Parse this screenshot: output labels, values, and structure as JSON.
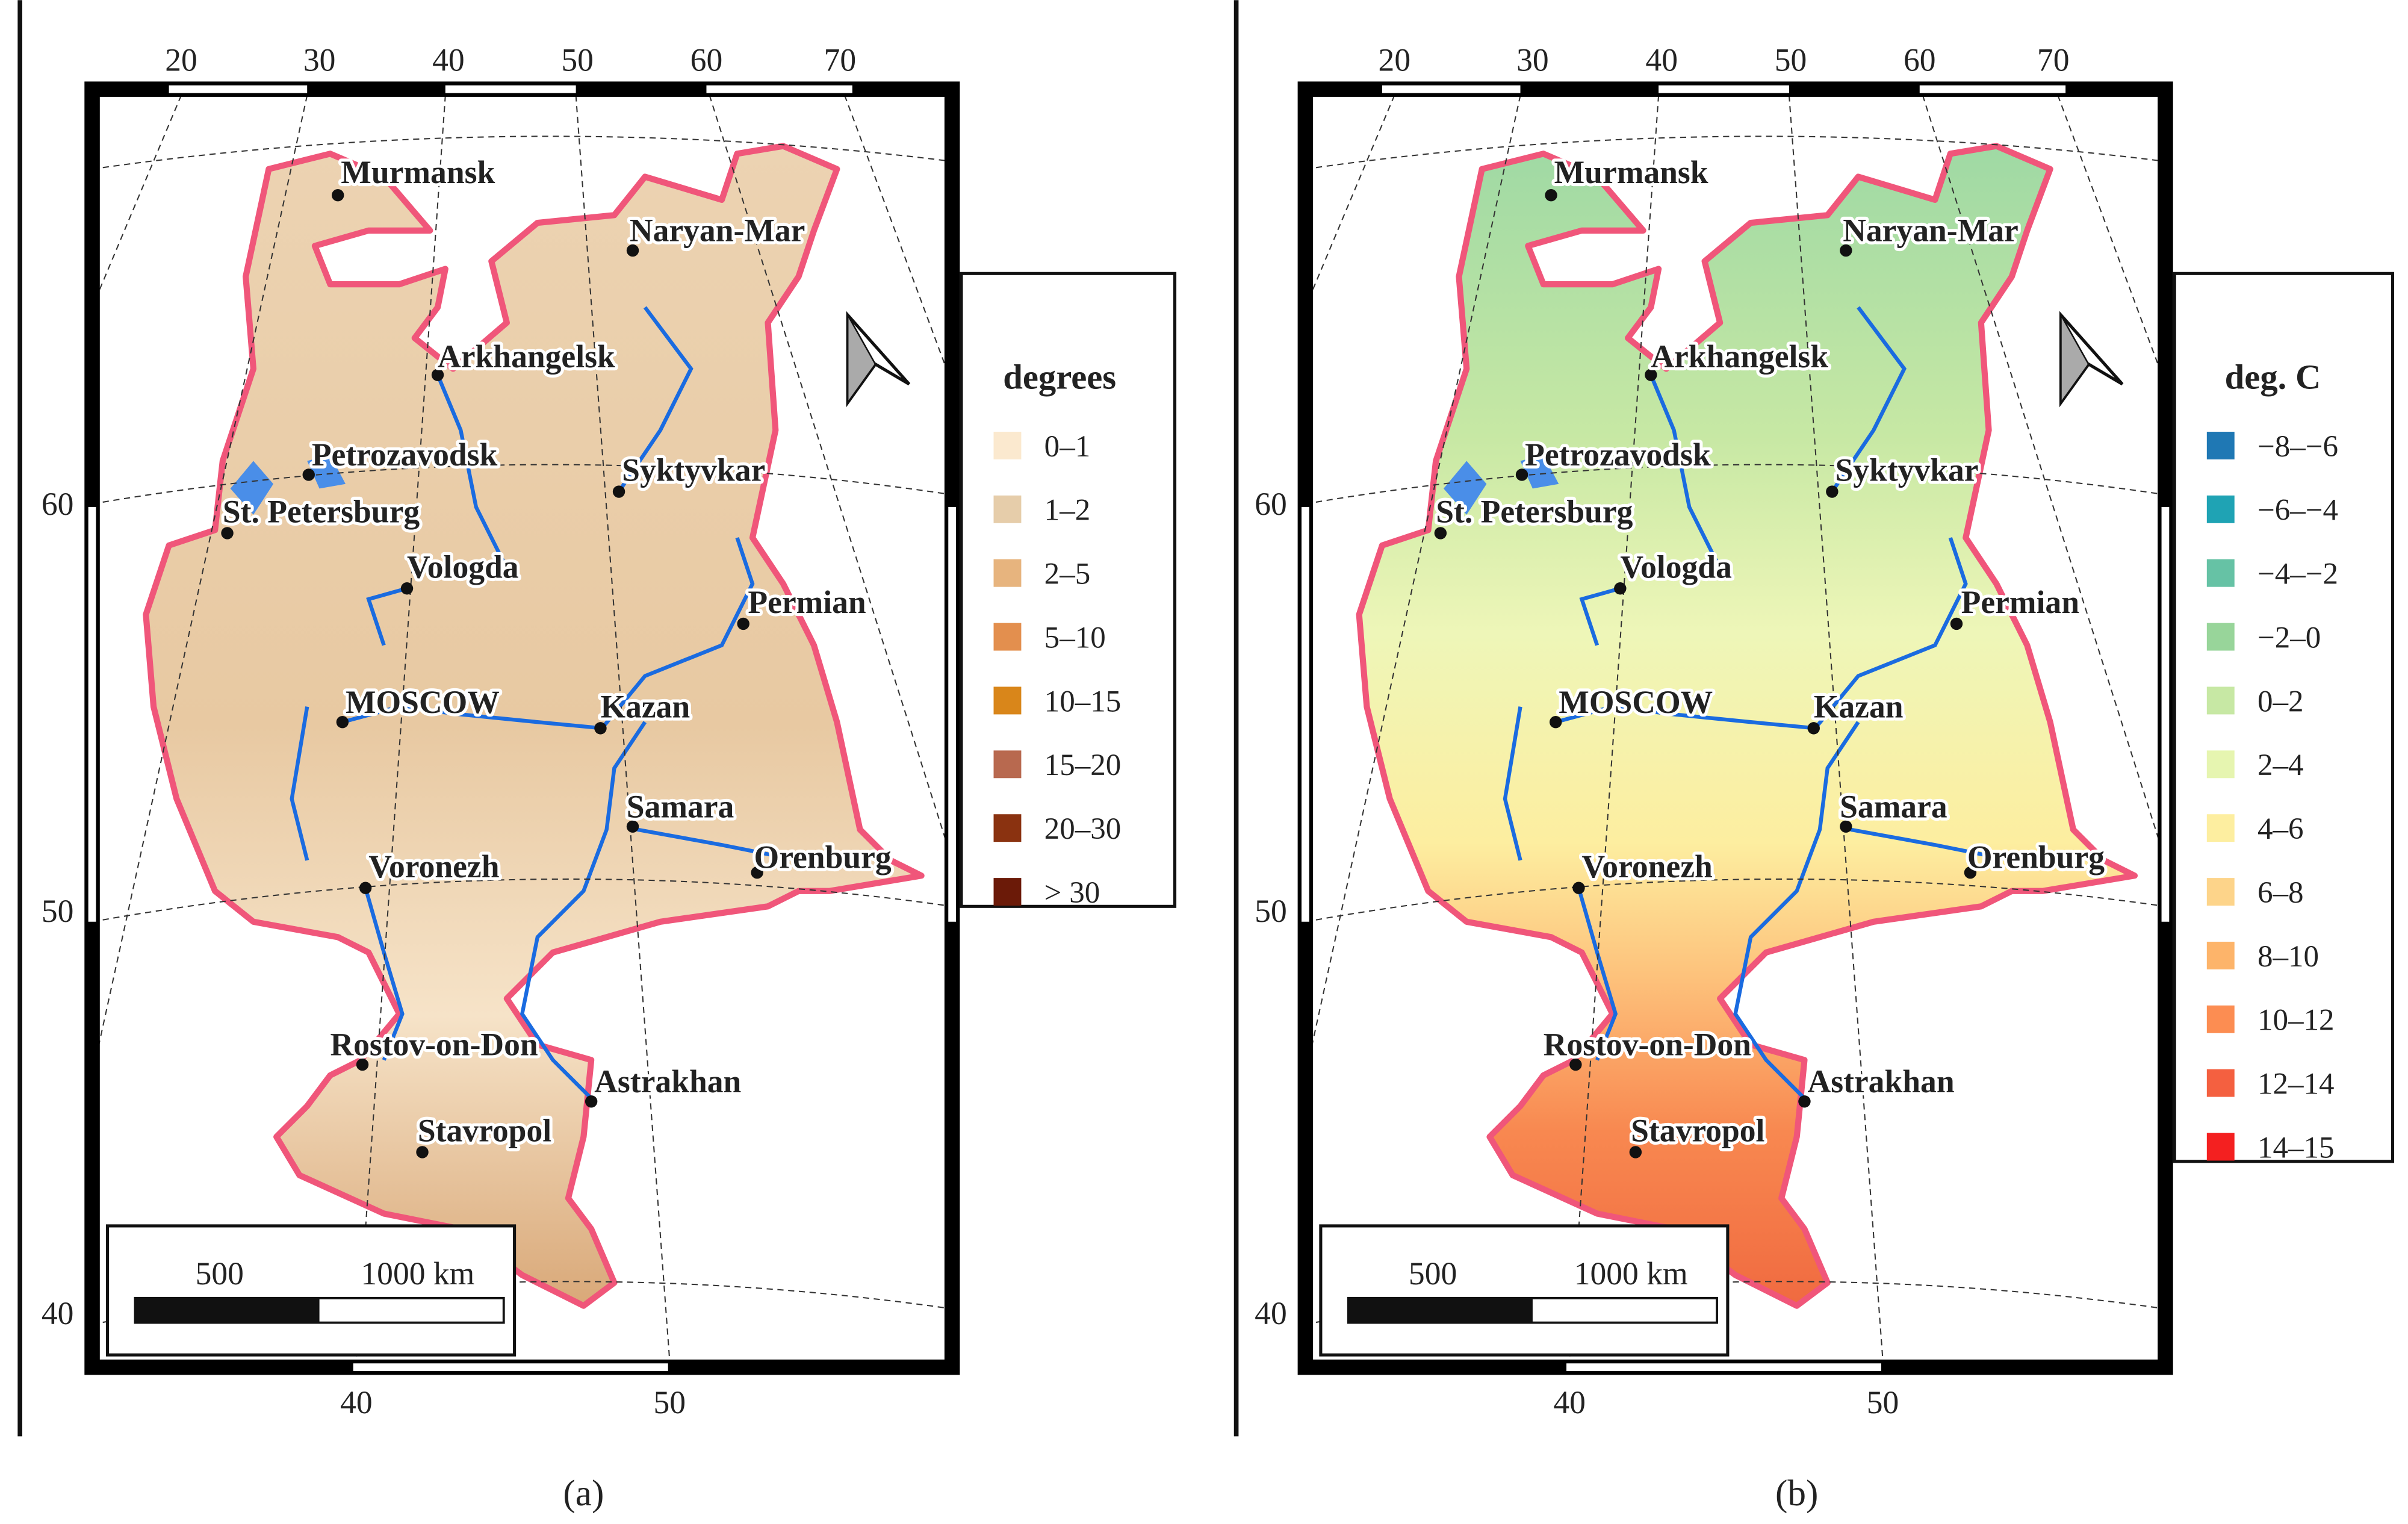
{
  "panels": [
    {
      "caption": "(a)",
      "top_ticks": [
        20,
        30,
        40,
        50,
        60,
        70
      ],
      "left_ticks": [
        60,
        50,
        40
      ],
      "bottom_ticks": [
        40,
        50
      ],
      "scale_labels": [
        "500",
        "1000 km"
      ],
      "legend_title": "degrees",
      "legend": [
        {
          "label": "0–1",
          "color": "#fbe9cf"
        },
        {
          "label": "1–2",
          "color": "#e6cdaa"
        },
        {
          "label": "2–5",
          "color": "#e7b47e"
        },
        {
          "label": "5–10",
          "color": "#e38f4e"
        },
        {
          "label": "10–15",
          "color": "#d9861a"
        },
        {
          "label": "15–20",
          "color": "#b8694f"
        },
        {
          "label": "20–30",
          "color": "#8a3210"
        },
        {
          "label": "> 30",
          "color": "#6b1a08"
        }
      ],
      "cities": [
        "Murmansk",
        "Naryan-Mar",
        "Arkhangelsk",
        "Petrozavodsk",
        "Syktyvkar",
        "St. Petersburg",
        "Vologda",
        "Permian",
        "MOSCOW",
        "Kazan",
        "Samara",
        "Orenburg",
        "Voronezh",
        "Rostov-on-Don",
        "Astrakhan",
        "Stavropol"
      ]
    },
    {
      "caption": "(b)",
      "top_ticks": [
        20,
        30,
        40,
        50,
        60,
        70
      ],
      "left_ticks": [
        60,
        50,
        40
      ],
      "bottom_ticks": [
        40,
        50
      ],
      "scale_labels": [
        "500",
        "1000 km"
      ],
      "legend_title": "deg. C",
      "legend": [
        {
          "label": "−8–−6",
          "color": "#1f78b4"
        },
        {
          "label": "−6–−4",
          "color": "#1fa3b4"
        },
        {
          "label": "−4–−2",
          "color": "#66c2a5"
        },
        {
          "label": "−2–0",
          "color": "#98d59a"
        },
        {
          "label": "0–2",
          "color": "#c7e8a4"
        },
        {
          "label": "2–4",
          "color": "#e6f5b0"
        },
        {
          "label": "4–6",
          "color": "#fdeea0"
        },
        {
          "label": "6–8",
          "color": "#fdd48a"
        },
        {
          "label": "8–10",
          "color": "#fdb46a"
        },
        {
          "label": "10–12",
          "color": "#fc8d52"
        },
        {
          "label": "12–14",
          "color": "#f46040"
        },
        {
          "label": "14–15",
          "color": "#f42020"
        }
      ],
      "cities": [
        "Murmansk",
        "Naryan-Mar",
        "Arkhangelsk",
        "Petrozavodsk",
        "Syktyvkar",
        "St. Petersburg",
        "Vologda",
        "Permian",
        "MOSCOW",
        "Kazan",
        "Samara",
        "Orenburg",
        "Voronezh",
        "Rostov-on-Don",
        "Astrakhan",
        "Stavropol"
      ]
    }
  ]
}
